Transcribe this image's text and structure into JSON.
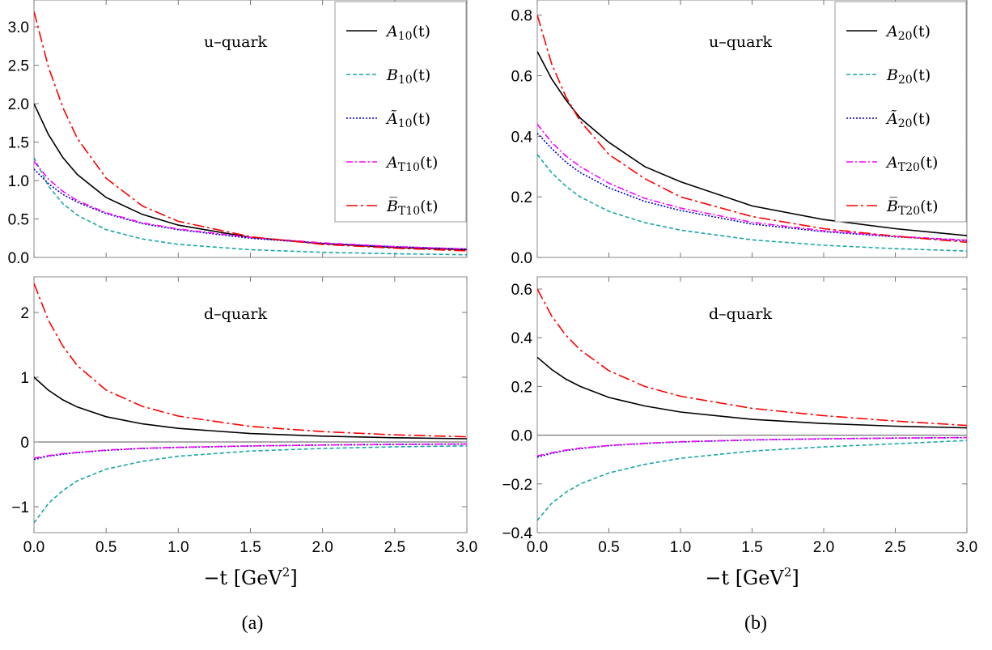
{
  "chart_data": [
    {
      "type": "line",
      "title": "u–quark",
      "xlim": [
        0,
        3
      ],
      "ylim": [
        0,
        3.35
      ],
      "yticks": [
        0.0,
        0.5,
        1.0,
        1.5,
        2.0,
        2.5,
        3.0
      ],
      "ytick_labels": [
        "0.0",
        "0.5",
        "1.0",
        "1.5",
        "2.0",
        "2.5",
        "3.0"
      ],
      "xlabel": "",
      "legend": "top-right",
      "series": [
        {
          "name": "A10(t)",
          "style": "solid",
          "color": "#000000",
          "x": [
            0,
            0.1,
            0.2,
            0.3,
            0.5,
            0.75,
            1.0,
            1.5,
            2.0,
            2.5,
            3.0
          ],
          "y": [
            2.0,
            1.6,
            1.3,
            1.08,
            0.78,
            0.56,
            0.42,
            0.26,
            0.18,
            0.13,
            0.1
          ]
        },
        {
          "name": "B10(t)",
          "style": "dashed",
          "color": "#1aa6a6",
          "x": [
            0,
            0.1,
            0.2,
            0.3,
            0.5,
            0.75,
            1.0,
            1.5,
            2.0,
            2.5,
            3.0
          ],
          "y": [
            1.3,
            0.93,
            0.7,
            0.55,
            0.36,
            0.24,
            0.17,
            0.1,
            0.066,
            0.047,
            0.035
          ]
        },
        {
          "name": "Ã10(t)",
          "style": "dotted",
          "color": "#0000cc",
          "x": [
            0,
            0.1,
            0.2,
            0.3,
            0.5,
            0.75,
            1.0,
            1.5,
            2.0,
            2.5,
            3.0
          ],
          "y": [
            1.15,
            0.96,
            0.82,
            0.72,
            0.57,
            0.44,
            0.36,
            0.25,
            0.18,
            0.14,
            0.11
          ]
        },
        {
          "name": "AT10(t)",
          "style": "dashdot",
          "color": "#ff00ff",
          "x": [
            0,
            0.1,
            0.2,
            0.3,
            0.5,
            0.75,
            1.0,
            1.5,
            2.0,
            2.5,
            3.0
          ],
          "y": [
            1.25,
            1.02,
            0.86,
            0.74,
            0.58,
            0.45,
            0.37,
            0.26,
            0.19,
            0.14,
            0.11
          ]
        },
        {
          "name": "B̅T10(t)",
          "style": "longdashdot",
          "color": "#ff0000",
          "x": [
            0,
            0.1,
            0.2,
            0.3,
            0.5,
            0.75,
            1.0,
            1.5,
            2.0,
            2.5,
            3.0
          ],
          "y": [
            3.2,
            2.48,
            1.95,
            1.55,
            1.03,
            0.67,
            0.47,
            0.27,
            0.17,
            0.12,
            0.085
          ]
        }
      ]
    },
    {
      "type": "line",
      "title": "u–quark",
      "xlim": [
        0,
        3
      ],
      "ylim": [
        0,
        0.85
      ],
      "yticks": [
        0.0,
        0.2,
        0.4,
        0.6,
        0.8
      ],
      "ytick_labels": [
        "0.0",
        "0.2",
        "0.4",
        "0.6",
        "0.8"
      ],
      "xlabel": "",
      "legend": "top-right",
      "series": [
        {
          "name": "A20(t)",
          "style": "solid",
          "color": "#000000",
          "x": [
            0,
            0.1,
            0.2,
            0.3,
            0.5,
            0.75,
            1.0,
            1.5,
            2.0,
            2.5,
            3.0
          ],
          "y": [
            0.68,
            0.59,
            0.52,
            0.46,
            0.38,
            0.3,
            0.25,
            0.17,
            0.125,
            0.095,
            0.072
          ]
        },
        {
          "name": "B20(t)",
          "style": "dashed",
          "color": "#1aa6a6",
          "x": [
            0,
            0.1,
            0.2,
            0.3,
            0.5,
            0.75,
            1.0,
            1.5,
            2.0,
            2.5,
            3.0
          ],
          "y": [
            0.34,
            0.28,
            0.235,
            0.2,
            0.152,
            0.115,
            0.09,
            0.058,
            0.04,
            0.029,
            0.021
          ]
        },
        {
          "name": "Ã20(t)",
          "style": "dotted",
          "color": "#0000cc",
          "x": [
            0,
            0.1,
            0.2,
            0.3,
            0.5,
            0.75,
            1.0,
            1.5,
            2.0,
            2.5,
            3.0
          ],
          "y": [
            0.41,
            0.36,
            0.315,
            0.28,
            0.23,
            0.185,
            0.155,
            0.11,
            0.085,
            0.068,
            0.055
          ]
        },
        {
          "name": "AT20(t)",
          "style": "dashdot",
          "color": "#ff00ff",
          "x": [
            0,
            0.1,
            0.2,
            0.3,
            0.5,
            0.75,
            1.0,
            1.5,
            2.0,
            2.5,
            3.0
          ],
          "y": [
            0.44,
            0.38,
            0.335,
            0.3,
            0.245,
            0.195,
            0.163,
            0.116,
            0.088,
            0.07,
            0.057
          ]
        },
        {
          "name": "B̅T20(t)",
          "style": "longdashdot",
          "color": "#ff0000",
          "x": [
            0,
            0.1,
            0.2,
            0.3,
            0.5,
            0.75,
            1.0,
            1.5,
            2.0,
            2.5,
            3.0
          ],
          "y": [
            0.8,
            0.64,
            0.53,
            0.45,
            0.34,
            0.26,
            0.2,
            0.135,
            0.095,
            0.07,
            0.05
          ]
        }
      ]
    },
    {
      "type": "line",
      "title": "d–quark",
      "xlim": [
        0,
        3
      ],
      "ylim": [
        -1.4,
        2.55
      ],
      "yticks": [
        -1,
        0,
        1,
        2
      ],
      "ytick_labels": [
        "−1",
        "0",
        "1",
        "2"
      ],
      "xticks": [
        0.0,
        0.5,
        1.0,
        1.5,
        2.0,
        2.5,
        3.0
      ],
      "xtick_labels": [
        "0.0",
        "0.5",
        "1.0",
        "1.5",
        "2.0",
        "2.5",
        "3.0"
      ],
      "xlabel": "−t [GeV",
      "xlabel_sup": "2",
      "xlabel_end": "]",
      "zero_line": true,
      "series": [
        {
          "name": "A10(t)",
          "style": "solid",
          "color": "#000000",
          "x": [
            0,
            0.1,
            0.2,
            0.3,
            0.5,
            0.75,
            1.0,
            1.5,
            2.0,
            2.5,
            3.0
          ],
          "y": [
            1.0,
            0.8,
            0.65,
            0.54,
            0.39,
            0.28,
            0.21,
            0.13,
            0.09,
            0.065,
            0.05
          ]
        },
        {
          "name": "B10(t)",
          "style": "dashed",
          "color": "#1aa6a6",
          "x": [
            0,
            0.1,
            0.2,
            0.3,
            0.5,
            0.75,
            1.0,
            1.5,
            2.0,
            2.5,
            3.0
          ],
          "y": [
            -1.25,
            -0.95,
            -0.75,
            -0.6,
            -0.42,
            -0.3,
            -0.22,
            -0.14,
            -0.1,
            -0.075,
            -0.06
          ]
        },
        {
          "name": "Ã10(t)",
          "style": "dotted",
          "color": "#0000cc",
          "x": [
            0,
            0.1,
            0.2,
            0.3,
            0.5,
            0.75,
            1.0,
            1.5,
            2.0,
            2.5,
            3.0
          ],
          "y": [
            -0.27,
            -0.22,
            -0.19,
            -0.165,
            -0.13,
            -0.1,
            -0.085,
            -0.062,
            -0.048,
            -0.038,
            -0.032
          ]
        },
        {
          "name": "AT10(t)",
          "style": "dashdot",
          "color": "#ff00ff",
          "x": [
            0,
            0.1,
            0.2,
            0.3,
            0.5,
            0.75,
            1.0,
            1.5,
            2.0,
            2.5,
            3.0
          ],
          "y": [
            -0.25,
            -0.21,
            -0.18,
            -0.16,
            -0.125,
            -0.098,
            -0.082,
            -0.06,
            -0.047,
            -0.037,
            -0.031
          ]
        },
        {
          "name": "B̅T10(t)",
          "style": "longdashdot",
          "color": "#ff0000",
          "x": [
            0,
            0.1,
            0.2,
            0.3,
            0.5,
            0.75,
            1.0,
            1.5,
            2.0,
            2.5,
            3.0
          ],
          "y": [
            2.45,
            1.88,
            1.48,
            1.18,
            0.8,
            0.55,
            0.4,
            0.24,
            0.16,
            0.11,
            0.08
          ]
        }
      ]
    },
    {
      "type": "line",
      "title": "d–quark",
      "xlim": [
        0,
        3
      ],
      "ylim": [
        -0.4,
        0.65
      ],
      "yticks": [
        -0.4,
        -0.2,
        0.0,
        0.2,
        0.4,
        0.6
      ],
      "ytick_labels": [
        "−0.4",
        "−0.2",
        "0.0",
        "0.2",
        "0.4",
        "0.6"
      ],
      "xticks": [
        0.0,
        0.5,
        1.0,
        1.5,
        2.0,
        2.5,
        3.0
      ],
      "xtick_labels": [
        "0.0",
        "0.5",
        "1.0",
        "1.5",
        "2.0",
        "2.5",
        "3.0"
      ],
      "xlabel": "−t [GeV",
      "xlabel_sup": "2",
      "xlabel_end": "]",
      "zero_line": true,
      "series": [
        {
          "name": "A20(t)",
          "style": "solid",
          "color": "#000000",
          "x": [
            0,
            0.1,
            0.2,
            0.3,
            0.5,
            0.75,
            1.0,
            1.5,
            2.0,
            2.5,
            3.0
          ],
          "y": [
            0.32,
            0.27,
            0.23,
            0.2,
            0.155,
            0.12,
            0.095,
            0.065,
            0.048,
            0.037,
            0.03
          ]
        },
        {
          "name": "B20(t)",
          "style": "dashed",
          "color": "#1aa6a6",
          "x": [
            0,
            0.1,
            0.2,
            0.3,
            0.5,
            0.75,
            1.0,
            1.5,
            2.0,
            2.5,
            3.0
          ],
          "y": [
            -0.35,
            -0.28,
            -0.235,
            -0.2,
            -0.155,
            -0.12,
            -0.095,
            -0.065,
            -0.048,
            -0.035,
            -0.022
          ]
        },
        {
          "name": "Ã20(t)",
          "style": "dotted",
          "color": "#0000cc",
          "x": [
            0,
            0.1,
            0.2,
            0.3,
            0.5,
            0.75,
            1.0,
            1.5,
            2.0,
            2.5,
            3.0
          ],
          "y": [
            -0.09,
            -0.075,
            -0.063,
            -0.055,
            -0.043,
            -0.034,
            -0.028,
            -0.02,
            -0.015,
            -0.012,
            -0.01
          ]
        },
        {
          "name": "AT20(t)",
          "style": "dashdot",
          "color": "#ff00ff",
          "x": [
            0,
            0.1,
            0.2,
            0.3,
            0.5,
            0.75,
            1.0,
            1.5,
            2.0,
            2.5,
            3.0
          ],
          "y": [
            -0.085,
            -0.072,
            -0.061,
            -0.053,
            -0.042,
            -0.033,
            -0.027,
            -0.019,
            -0.015,
            -0.012,
            -0.01
          ]
        },
        {
          "name": "B̅T20(t)",
          "style": "longdashdot",
          "color": "#ff0000",
          "x": [
            0,
            0.1,
            0.2,
            0.3,
            0.5,
            0.75,
            1.0,
            1.5,
            2.0,
            2.5,
            3.0
          ],
          "y": [
            0.6,
            0.49,
            0.41,
            0.35,
            0.265,
            0.2,
            0.16,
            0.11,
            0.08,
            0.058,
            0.04
          ]
        }
      ]
    }
  ],
  "captions": {
    "a": "(a)",
    "b": "(b)"
  }
}
